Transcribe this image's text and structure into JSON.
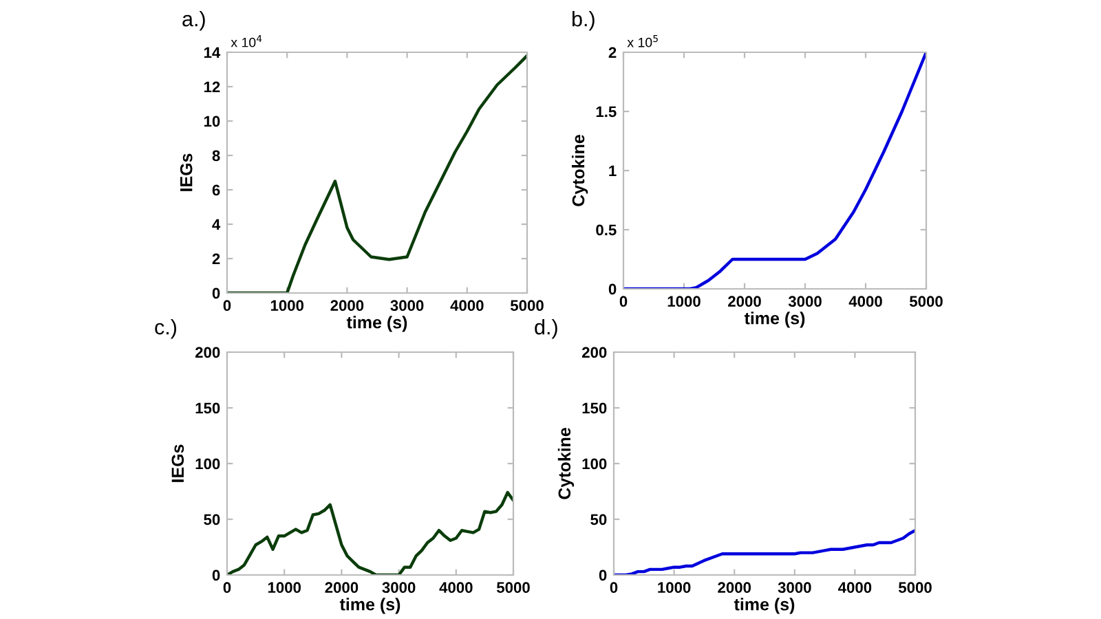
{
  "chart_data": [
    {
      "type": "line",
      "title": "a.)",
      "xlabel": "time (s)",
      "ylabel": "IEGs",
      "annotations": [
        "x 10$^{4}$"
      ],
      "xlim": [
        0,
        5000
      ],
      "xticks": [
        0,
        1000,
        2000,
        3000,
        4000,
        5000
      ],
      "ylim": [
        0,
        14
      ],
      "yticks": [
        0,
        2,
        4,
        6,
        8,
        10,
        12,
        14
      ],
      "grid": false,
      "legend": false,
      "series": [
        {
          "color": "#0b3d0b",
          "x": [
            0,
            1000,
            1100,
            1300,
            1500,
            1800,
            2000,
            2100,
            2400,
            2700,
            3000,
            3300,
            3600,
            3800,
            4000,
            4200,
            4500,
            4800,
            5000
          ],
          "values": [
            0,
            0,
            1.0,
            2.8,
            4.3,
            6.5,
            3.8,
            3.1,
            2.1,
            1.95,
            2.1,
            4.7,
            6.8,
            8.2,
            9.4,
            10.7,
            12.1,
            13.1,
            13.8
          ]
        }
      ]
    },
    {
      "type": "line",
      "title": "b.)",
      "xlabel": "time (s)",
      "ylabel": "Cytokine",
      "annotations": [
        "x 10$^{5}$"
      ],
      "xlim": [
        0,
        5000
      ],
      "xticks": [
        0,
        1000,
        2000,
        3000,
        4000,
        5000
      ],
      "ylim": [
        0,
        2
      ],
      "yticks": [
        0,
        0.5,
        1,
        1.5,
        2
      ],
      "grid": false,
      "legend": false,
      "series": [
        {
          "color": "#0000dd",
          "x": [
            0,
            1100,
            1200,
            1400,
            1600,
            1800,
            3000,
            3200,
            3500,
            3800,
            4000,
            4300,
            4600,
            5000
          ],
          "values": [
            0,
            0,
            0.01,
            0.07,
            0.15,
            0.25,
            0.25,
            0.3,
            0.42,
            0.65,
            0.84,
            1.16,
            1.5,
            2.0
          ]
        }
      ]
    },
    {
      "type": "line",
      "title": "c.)",
      "xlabel": "time (s)",
      "ylabel": "IEGs",
      "xlim": [
        0,
        5000
      ],
      "xticks": [
        0,
        1000,
        2000,
        3000,
        4000,
        5000
      ],
      "ylim": [
        0,
        200
      ],
      "yticks": [
        0,
        50,
        100,
        150,
        200
      ],
      "grid": false,
      "legend": false,
      "series": [
        {
          "color": "#0b3d0b",
          "x": [
            0,
            100,
            200,
            300,
            400,
            500,
            600,
            700,
            800,
            900,
            1000,
            1100,
            1200,
            1300,
            1400,
            1500,
            1600,
            1700,
            1800,
            1900,
            2000,
            2100,
            2200,
            2300,
            2500,
            2600,
            3000,
            3100,
            3200,
            3300,
            3400,
            3500,
            3600,
            3700,
            3800,
            3900,
            4000,
            4100,
            4200,
            4300,
            4400,
            4500,
            4600,
            4700,
            4800,
            4900,
            5000
          ],
          "values": [
            0,
            3,
            5,
            9,
            18,
            27,
            30,
            34,
            23,
            35,
            35,
            38,
            41,
            38,
            40,
            54,
            55,
            58,
            63,
            45,
            27,
            17,
            12,
            7,
            3,
            0,
            0,
            7,
            7,
            17,
            22,
            29,
            33,
            40,
            35,
            31,
            33,
            40,
            39,
            38,
            41,
            57,
            56,
            57,
            63,
            74,
            67
          ]
        }
      ]
    },
    {
      "type": "line",
      "title": "d.)",
      "xlabel": "time (s)",
      "ylabel": "Cytokine",
      "xlim": [
        0,
        5000
      ],
      "xticks": [
        0,
        1000,
        2000,
        3000,
        4000,
        5000
      ],
      "ylim": [
        0,
        200
      ],
      "yticks": [
        0,
        50,
        100,
        150,
        200
      ],
      "grid": false,
      "legend": false,
      "series": [
        {
          "color": "#0000dd",
          "x": [
            0,
            200,
            300,
            400,
            500,
            600,
            800,
            900,
            1000,
            1100,
            1200,
            1300,
            1500,
            1800,
            3000,
            3100,
            3300,
            3500,
            3600,
            3800,
            4000,
            4200,
            4300,
            4400,
            4600,
            4800,
            4900,
            5000
          ],
          "values": [
            0,
            0,
            1,
            3,
            3,
            5,
            5,
            6,
            7,
            7,
            8,
            8,
            13,
            19,
            19,
            20,
            20,
            22,
            23,
            23,
            25,
            27,
            27,
            29,
            29,
            33,
            37,
            40
          ]
        }
      ]
    }
  ]
}
